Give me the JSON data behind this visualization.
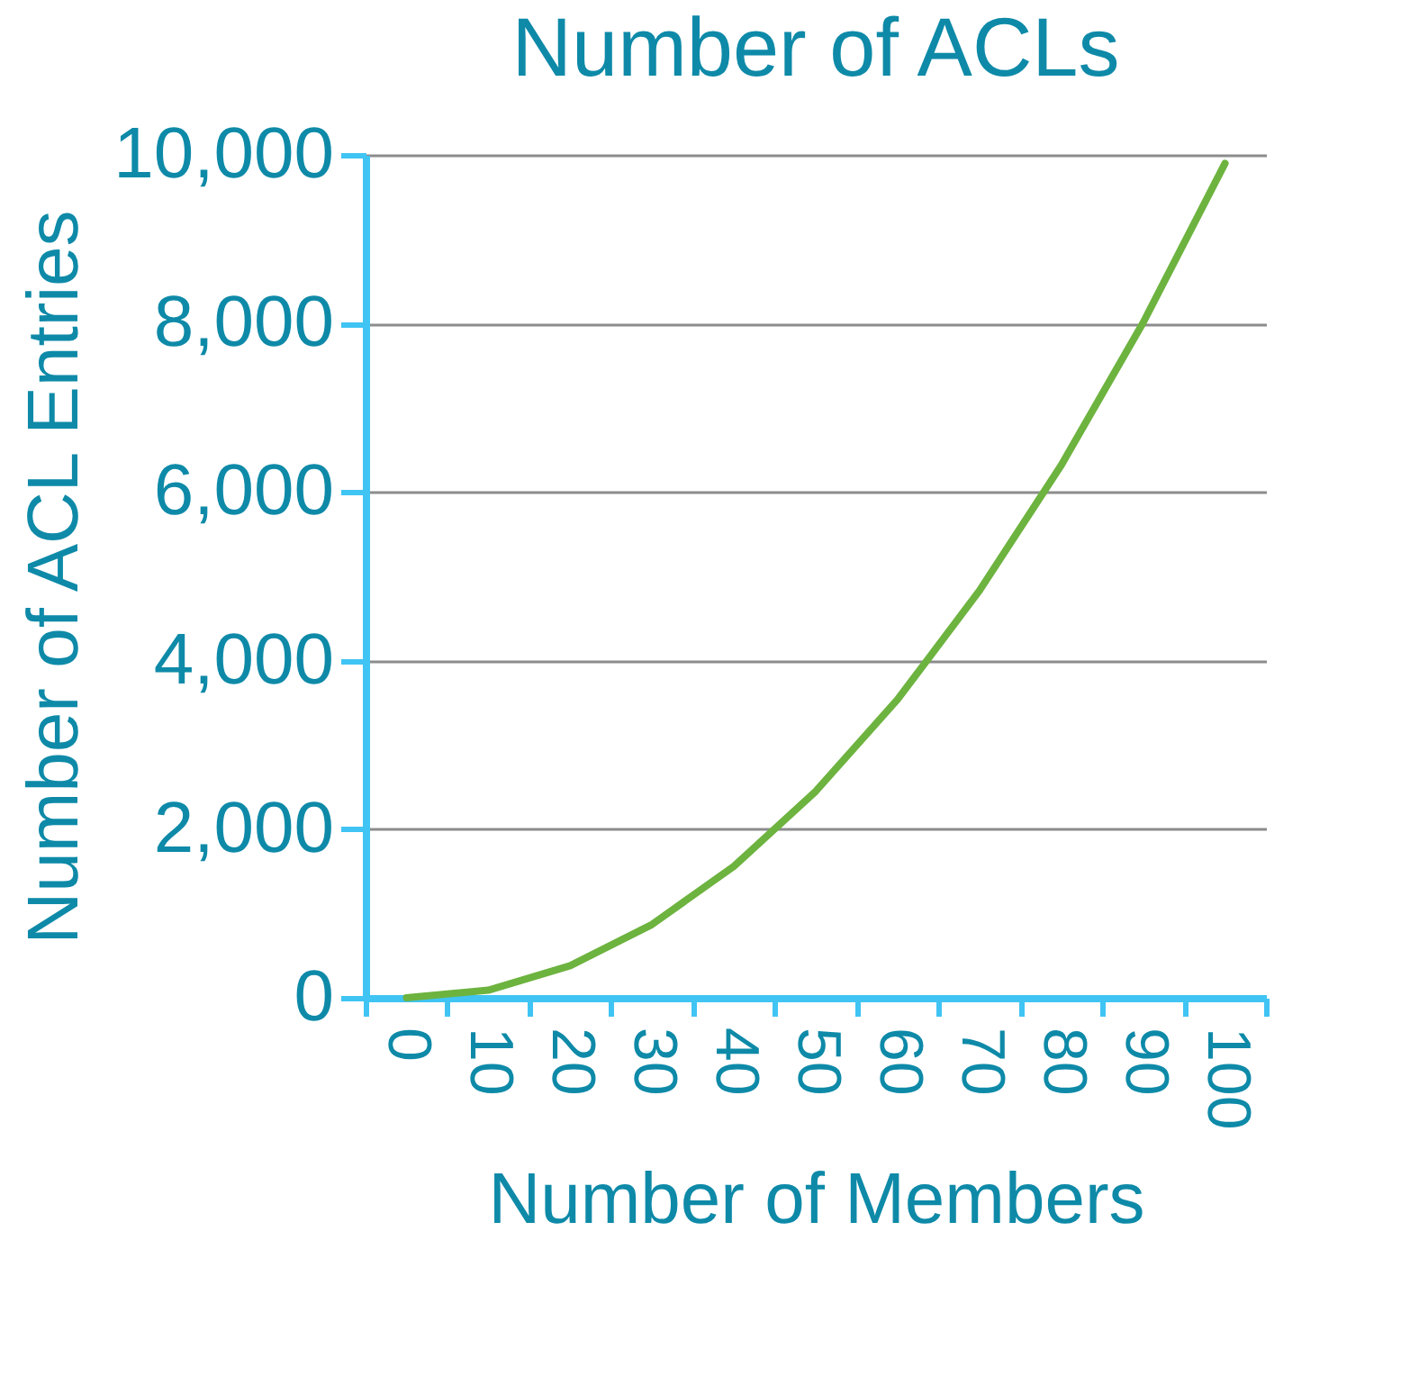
{
  "chart_data": {
    "type": "line",
    "title": "Number of ACLs",
    "xlabel": "Number of Members",
    "ylabel": "Number of ACL Entries",
    "categories": [
      "0",
      "10",
      "20",
      "30",
      "40",
      "50",
      "60",
      "70",
      "80",
      "90",
      "100"
    ],
    "series": [
      {
        "color": "#6db33f",
        "values": [
          0,
          90,
          380,
          870,
          1560,
          2450,
          3540,
          4830,
          6320,
          8010,
          9900
        ]
      }
    ],
    "ylim": [
      0,
      10000
    ],
    "yticks": [
      {
        "value": 0,
        "label": "0"
      },
      {
        "value": 2000,
        "label": "2,000"
      },
      {
        "value": 4000,
        "label": "4,000"
      },
      {
        "value": 6000,
        "label": "6,000"
      },
      {
        "value": 8000,
        "label": "8,000"
      },
      {
        "value": 10000,
        "label": "10,000"
      }
    ],
    "grid": "y",
    "marker": "none",
    "line_style": "solid"
  }
}
